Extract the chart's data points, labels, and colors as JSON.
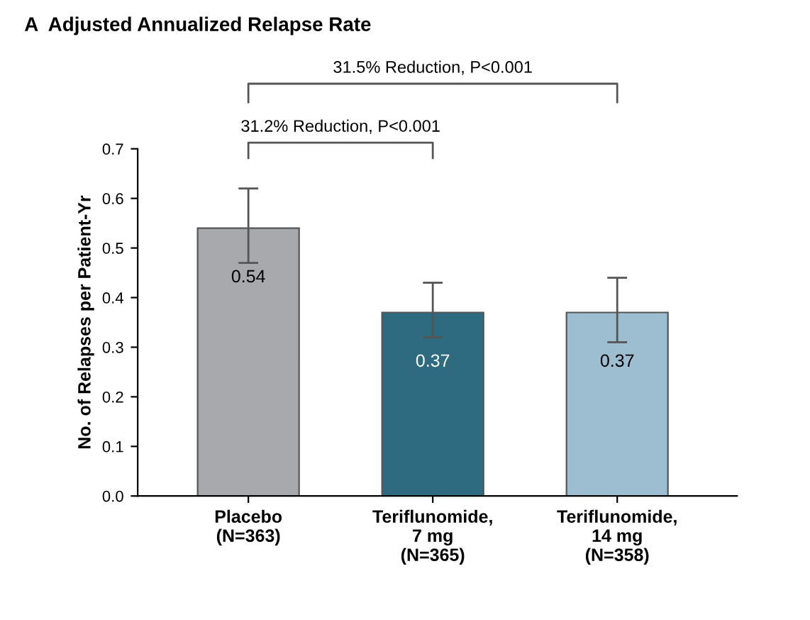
{
  "chart_data": {
    "type": "bar",
    "title": "A  Adjusted Annualized Relapse Rate",
    "ylabel": "No. of Relapses per Patient-Yr",
    "categories": [
      "Placebo\n(N=363)",
      "Teriflunomide,\n7 mg\n(N=365)",
      "Teriflunomide,\n14 mg\n(N=358)"
    ],
    "values": [
      0.54,
      0.37,
      0.37
    ],
    "colors": [
      "#a7a9ac",
      "#2e6a80",
      "#9dbdd0"
    ],
    "errors": [
      [
        0.47,
        0.62
      ],
      [
        0.32,
        0.43
      ],
      [
        0.31,
        0.44
      ]
    ],
    "data_labels": true,
    "ylim": [
      0,
      0.7
    ],
    "yticks": [
      {
        "value": 0,
        "label": "0.0"
      },
      0.1,
      0.2,
      0.3,
      0.4,
      0.5,
      0.6,
      0.7
    ],
    "annotations": [
      "31.5% Reduction, P<0.001",
      "31.2% Reduction, P<0.001"
    ],
    "grid": false
  }
}
